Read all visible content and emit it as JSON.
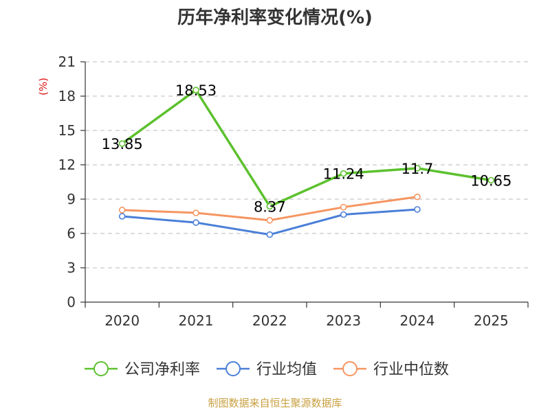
{
  "chart_data": {
    "type": "line",
    "title": "历年净利率变化情况(%)",
    "ylabel": "(%)",
    "xlabel": "",
    "categories": [
      "2020",
      "2021",
      "2022",
      "2023",
      "2024",
      "2025"
    ],
    "ylim": [
      0,
      21
    ],
    "yticks": [
      0,
      3,
      6,
      9,
      12,
      15,
      18,
      21
    ],
    "grid": true,
    "legend_position": "bottom",
    "series": [
      {
        "name": "公司净利率",
        "color": "#5cc12e",
        "values": [
          13.85,
          18.53,
          8.37,
          11.24,
          11.7,
          10.65
        ],
        "labels": [
          "13.85",
          "18.53",
          "8.37",
          "11.24",
          "11.7",
          "10.65"
        ]
      },
      {
        "name": "行业均值",
        "color": "#4a7fd8",
        "values": [
          7.5,
          6.95,
          5.9,
          7.65,
          8.1,
          null
        ]
      },
      {
        "name": "行业中位数",
        "color": "#f59560",
        "values": [
          8.05,
          7.8,
          7.15,
          8.3,
          9.2,
          null
        ]
      }
    ]
  },
  "footer": {
    "source": "制图数据来自恒生聚源数据库"
  }
}
